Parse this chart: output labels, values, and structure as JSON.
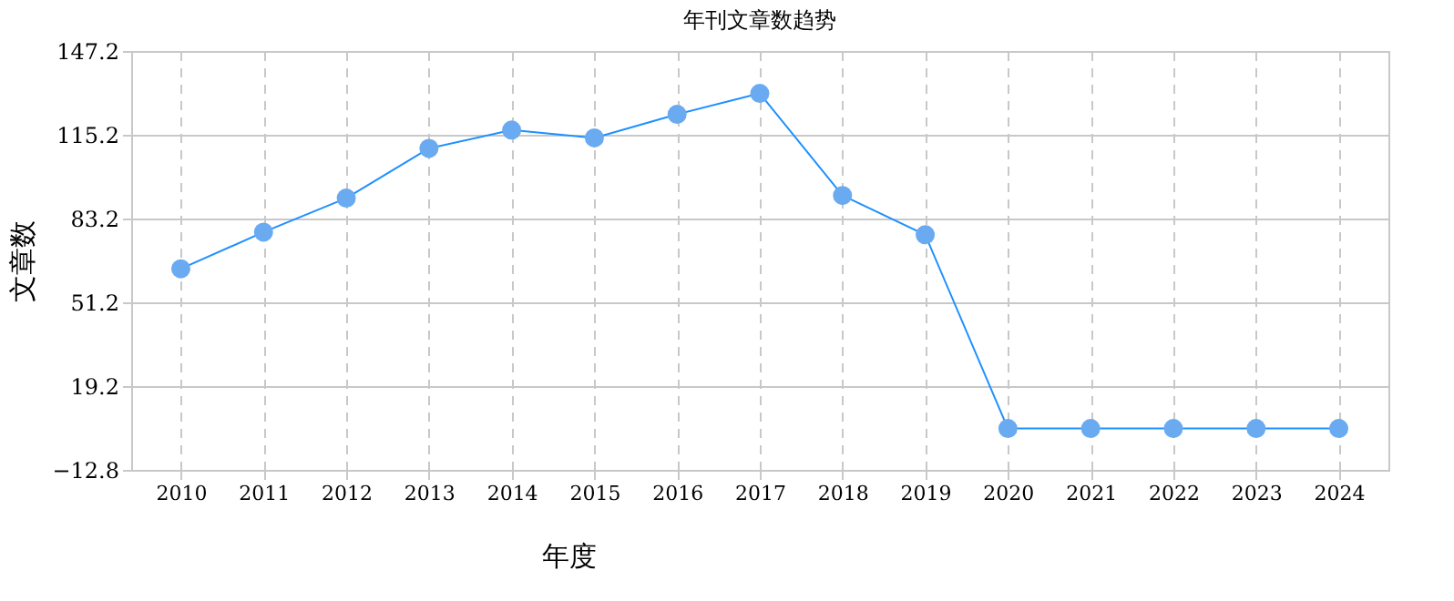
{
  "chart_data": {
    "type": "line",
    "title": "年刊文章数趋势",
    "xlabel": "年度",
    "ylabel": "文章数",
    "categories": [
      "2010",
      "2011",
      "2012",
      "2013",
      "2014",
      "2015",
      "2016",
      "2017",
      "2018",
      "2019",
      "2020",
      "2021",
      "2022",
      "2023",
      "2024"
    ],
    "series": [
      {
        "color": "#1e90ff",
        "values": [
          64,
          78,
          91,
          110,
          117,
          114,
          123,
          131,
          92,
          77,
          3,
          3,
          3,
          3,
          3
        ]
      }
    ],
    "ylim": [
      -12.8,
      147.2
    ],
    "yticks": [
      -12.8,
      19.2,
      51.2,
      83.2,
      115.2,
      147.2
    ],
    "grid": true,
    "marker": "circle",
    "line_style": "solid"
  }
}
